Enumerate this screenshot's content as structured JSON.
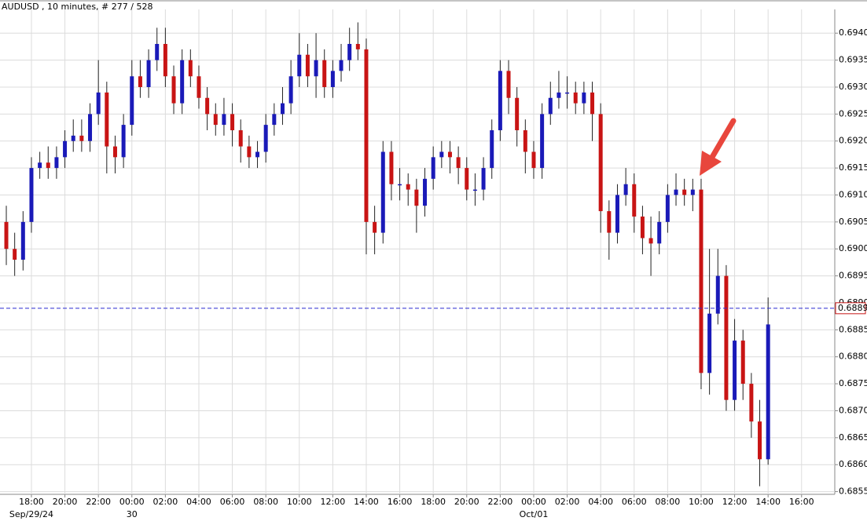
{
  "chart_data": {
    "type": "candlestick",
    "title": "AUDUSD , 10 minutes, # 277 / 528",
    "categories": [
      null,
      null,
      null,
      "18:00",
      null,
      null,
      null,
      "20:00",
      null,
      null,
      null,
      "22:00",
      null,
      null,
      null,
      "00:00",
      null,
      null,
      null,
      "02:00",
      null,
      null,
      null,
      "04:00",
      null,
      null,
      null,
      "06:00",
      null,
      null,
      null,
      "08:00",
      null,
      null,
      null,
      "10:00",
      null,
      null,
      null,
      "12:00",
      null,
      null,
      null,
      "14:00",
      null,
      null,
      null,
      "16:00",
      null,
      null,
      null,
      "18:00",
      null,
      null,
      null,
      "20:00",
      null,
      null,
      null,
      "22:00",
      null,
      null,
      null,
      "00:00",
      null,
      null,
      null,
      "02:00",
      null,
      null,
      null,
      "04:00",
      null,
      null,
      null,
      "06:00",
      null,
      null,
      null,
      "08:00",
      null,
      null,
      null,
      "10:00",
      null,
      null,
      null,
      "12:00",
      null,
      null,
      null,
      "14:00",
      null,
      null,
      null,
      "16:00"
    ],
    "dates": [
      null,
      null,
      null,
      "Sep/29/24",
      null,
      null,
      null,
      null,
      null,
      null,
      null,
      null,
      null,
      null,
      null,
      "30",
      null,
      null,
      null,
      null,
      null,
      null,
      null,
      null,
      null,
      null,
      null,
      null,
      null,
      null,
      null,
      null,
      null,
      null,
      null,
      null,
      null,
      null,
      null,
      null,
      null,
      null,
      null,
      null,
      null,
      null,
      null,
      null,
      null,
      null,
      null,
      null,
      null,
      null,
      null,
      null,
      null,
      null,
      null,
      null,
      null,
      null,
      null,
      "Oct/01",
      null,
      null,
      null,
      null,
      null,
      null,
      null,
      null,
      null,
      null,
      null,
      null,
      null,
      null,
      null,
      null,
      null,
      null,
      null,
      null,
      null,
      null,
      null,
      null,
      null,
      null,
      null,
      null,
      null,
      null,
      null,
      null
    ],
    "open": [
      0.6905,
      0.69,
      0.6898,
      0.6905,
      0.6915,
      0.6916,
      0.6915,
      0.6917,
      0.692,
      0.6921,
      0.692,
      0.6925,
      0.6929,
      0.6919,
      0.6917,
      0.6923,
      0.6932,
      0.693,
      0.6935,
      0.6938,
      0.6932,
      0.6927,
      0.6935,
      0.6932,
      0.6928,
      0.6925,
      0.6923,
      0.6925,
      0.6922,
      0.6919,
      0.6917,
      0.6918,
      0.6923,
      0.6925,
      0.6927,
      0.6932,
      0.6936,
      0.6932,
      0.6935,
      0.693,
      0.6933,
      0.6935,
      0.6938,
      0.6937,
      0.6905,
      0.6903,
      0.6918,
      0.6912,
      0.6912,
      0.6911,
      0.6908,
      0.6913,
      0.6917,
      0.6918,
      0.6917,
      0.6915,
      0.6911,
      0.6911,
      0.6915,
      0.6922,
      0.6933,
      0.6928,
      0.6922,
      0.6918,
      0.6915,
      0.6925,
      0.6928,
      0.6929,
      0.6929,
      0.6927,
      0.6929,
      0.6925,
      0.6907,
      0.6903,
      0.691,
      0.6912,
      0.6906,
      0.6902,
      0.6901,
      0.6905,
      0.691,
      0.6911,
      0.691,
      0.6911,
      0.6877,
      0.6888,
      0.6895,
      0.6872,
      0.6883,
      0.6875,
      0.6868,
      0.6861,
      null,
      null,
      null,
      null
    ],
    "high": [
      0.6908,
      0.6903,
      0.6907,
      0.6917,
      0.6918,
      0.6919,
      0.6919,
      0.6922,
      0.6924,
      0.6924,
      0.6927,
      0.6935,
      0.6931,
      0.6921,
      0.6925,
      0.6935,
      0.6935,
      0.6937,
      0.6941,
      0.6941,
      0.6934,
      0.6937,
      0.6937,
      0.6934,
      0.693,
      0.6927,
      0.6928,
      0.6927,
      0.6924,
      0.6921,
      0.692,
      0.6925,
      0.6927,
      0.693,
      0.6935,
      0.694,
      0.6938,
      0.694,
      0.6937,
      0.6935,
      0.6938,
      0.6941,
      0.6942,
      0.6939,
      0.6908,
      0.692,
      0.692,
      0.6915,
      0.6914,
      0.6913,
      0.6915,
      0.6919,
      0.692,
      0.692,
      0.6919,
      0.6917,
      0.6914,
      0.6917,
      0.6924,
      0.6935,
      0.6935,
      0.693,
      0.6924,
      0.692,
      0.6927,
      0.6931,
      0.6933,
      0.6932,
      0.6931,
      0.6931,
      0.6931,
      0.6927,
      0.6909,
      0.6912,
      0.6915,
      0.6914,
      0.6908,
      0.6906,
      0.6907,
      0.6912,
      0.6914,
      0.6913,
      0.6913,
      0.6913,
      0.69,
      0.69,
      0.6897,
      0.6887,
      0.6885,
      0.6877,
      0.6872,
      0.6891,
      null,
      null,
      null,
      null
    ],
    "low": [
      0.6897,
      0.6895,
      0.6896,
      0.6903,
      0.6913,
      0.6913,
      0.6913,
      0.6915,
      0.6918,
      0.6918,
      0.6918,
      0.6923,
      0.6914,
      0.6914,
      0.6915,
      0.6921,
      0.6928,
      0.6928,
      0.6933,
      0.693,
      0.6925,
      0.6925,
      0.693,
      0.6926,
      0.6922,
      0.6921,
      0.6921,
      0.6919,
      0.6916,
      0.6915,
      0.6915,
      0.6916,
      0.6921,
      0.6923,
      0.6925,
      0.693,
      0.693,
      0.6928,
      0.6928,
      0.6928,
      0.6931,
      0.6933,
      0.6935,
      0.6899,
      0.6899,
      0.6901,
      0.6909,
      0.6909,
      0.6908,
      0.6903,
      0.6906,
      0.6911,
      0.6915,
      0.6914,
      0.6912,
      0.6909,
      0.6908,
      0.6909,
      0.6913,
      0.692,
      0.6925,
      0.6919,
      0.6914,
      0.6913,
      0.6913,
      0.6923,
      0.6926,
      0.6926,
      0.6925,
      0.6925,
      0.692,
      0.6903,
      0.6898,
      0.6901,
      0.6908,
      0.6903,
      0.6899,
      0.6895,
      0.6899,
      0.6903,
      0.6908,
      0.6908,
      0.6907,
      0.6874,
      0.6873,
      0.6886,
      0.687,
      0.687,
      0.6872,
      0.6865,
      0.6856,
      0.686,
      null,
      null,
      null,
      null
    ],
    "close": [
      0.69,
      0.6898,
      0.6905,
      0.6915,
      0.6916,
      0.6915,
      0.6917,
      0.692,
      0.6921,
      0.692,
      0.6925,
      0.6929,
      0.6919,
      0.6917,
      0.6923,
      0.6932,
      0.693,
      0.6935,
      0.6938,
      0.6932,
      0.6927,
      0.6935,
      0.6932,
      0.6928,
      0.6925,
      0.6923,
      0.6925,
      0.6922,
      0.6919,
      0.6917,
      0.6918,
      0.6923,
      0.6925,
      0.6927,
      0.6932,
      0.6936,
      0.6932,
      0.6935,
      0.693,
      0.6933,
      0.6935,
      0.6938,
      0.6937,
      0.6905,
      0.6903,
      0.6918,
      0.6912,
      0.6912,
      0.6911,
      0.6908,
      0.6913,
      0.6917,
      0.6918,
      0.6917,
      0.6915,
      0.6911,
      0.6911,
      0.6915,
      0.6922,
      0.6933,
      0.6928,
      0.6922,
      0.6918,
      0.6915,
      0.6925,
      0.6928,
      0.6929,
      0.6929,
      0.6927,
      0.6929,
      0.6925,
      0.6907,
      0.6903,
      0.691,
      0.6912,
      0.6906,
      0.6902,
      0.6901,
      0.6905,
      0.691,
      0.6911,
      0.691,
      0.6911,
      0.6877,
      0.6888,
      0.6895,
      0.6872,
      0.6883,
      0.6875,
      0.6868,
      0.6861,
      0.6886,
      null,
      null,
      null,
      null
    ],
    "up_color": "#1a1ab8",
    "down_color": "#c81414",
    "current_price": 0.6889,
    "ylim": [
      0.68545,
      0.69444
    ],
    "yticks": [
      0.6855,
      {
        "value": 0.686,
        "label": "0.6860"
      },
      0.6865,
      {
        "value": 0.687,
        "label": "0.6870"
      },
      0.6875,
      {
        "value": 0.688,
        "label": "0.6880"
      },
      0.6885,
      {
        "value": 0.689,
        "label": "0.6890"
      },
      0.6895,
      {
        "value": 0.69,
        "label": "0.6900"
      },
      0.6905,
      {
        "value": 0.691,
        "label": "0.6910"
      },
      0.6915,
      {
        "value": 0.692,
        "label": "0.6920"
      },
      0.6925,
      {
        "value": 0.693,
        "label": "0.6930"
      },
      0.6935,
      {
        "value": 0.694,
        "label": "0.6940"
      }
    ],
    "grid": true
  }
}
